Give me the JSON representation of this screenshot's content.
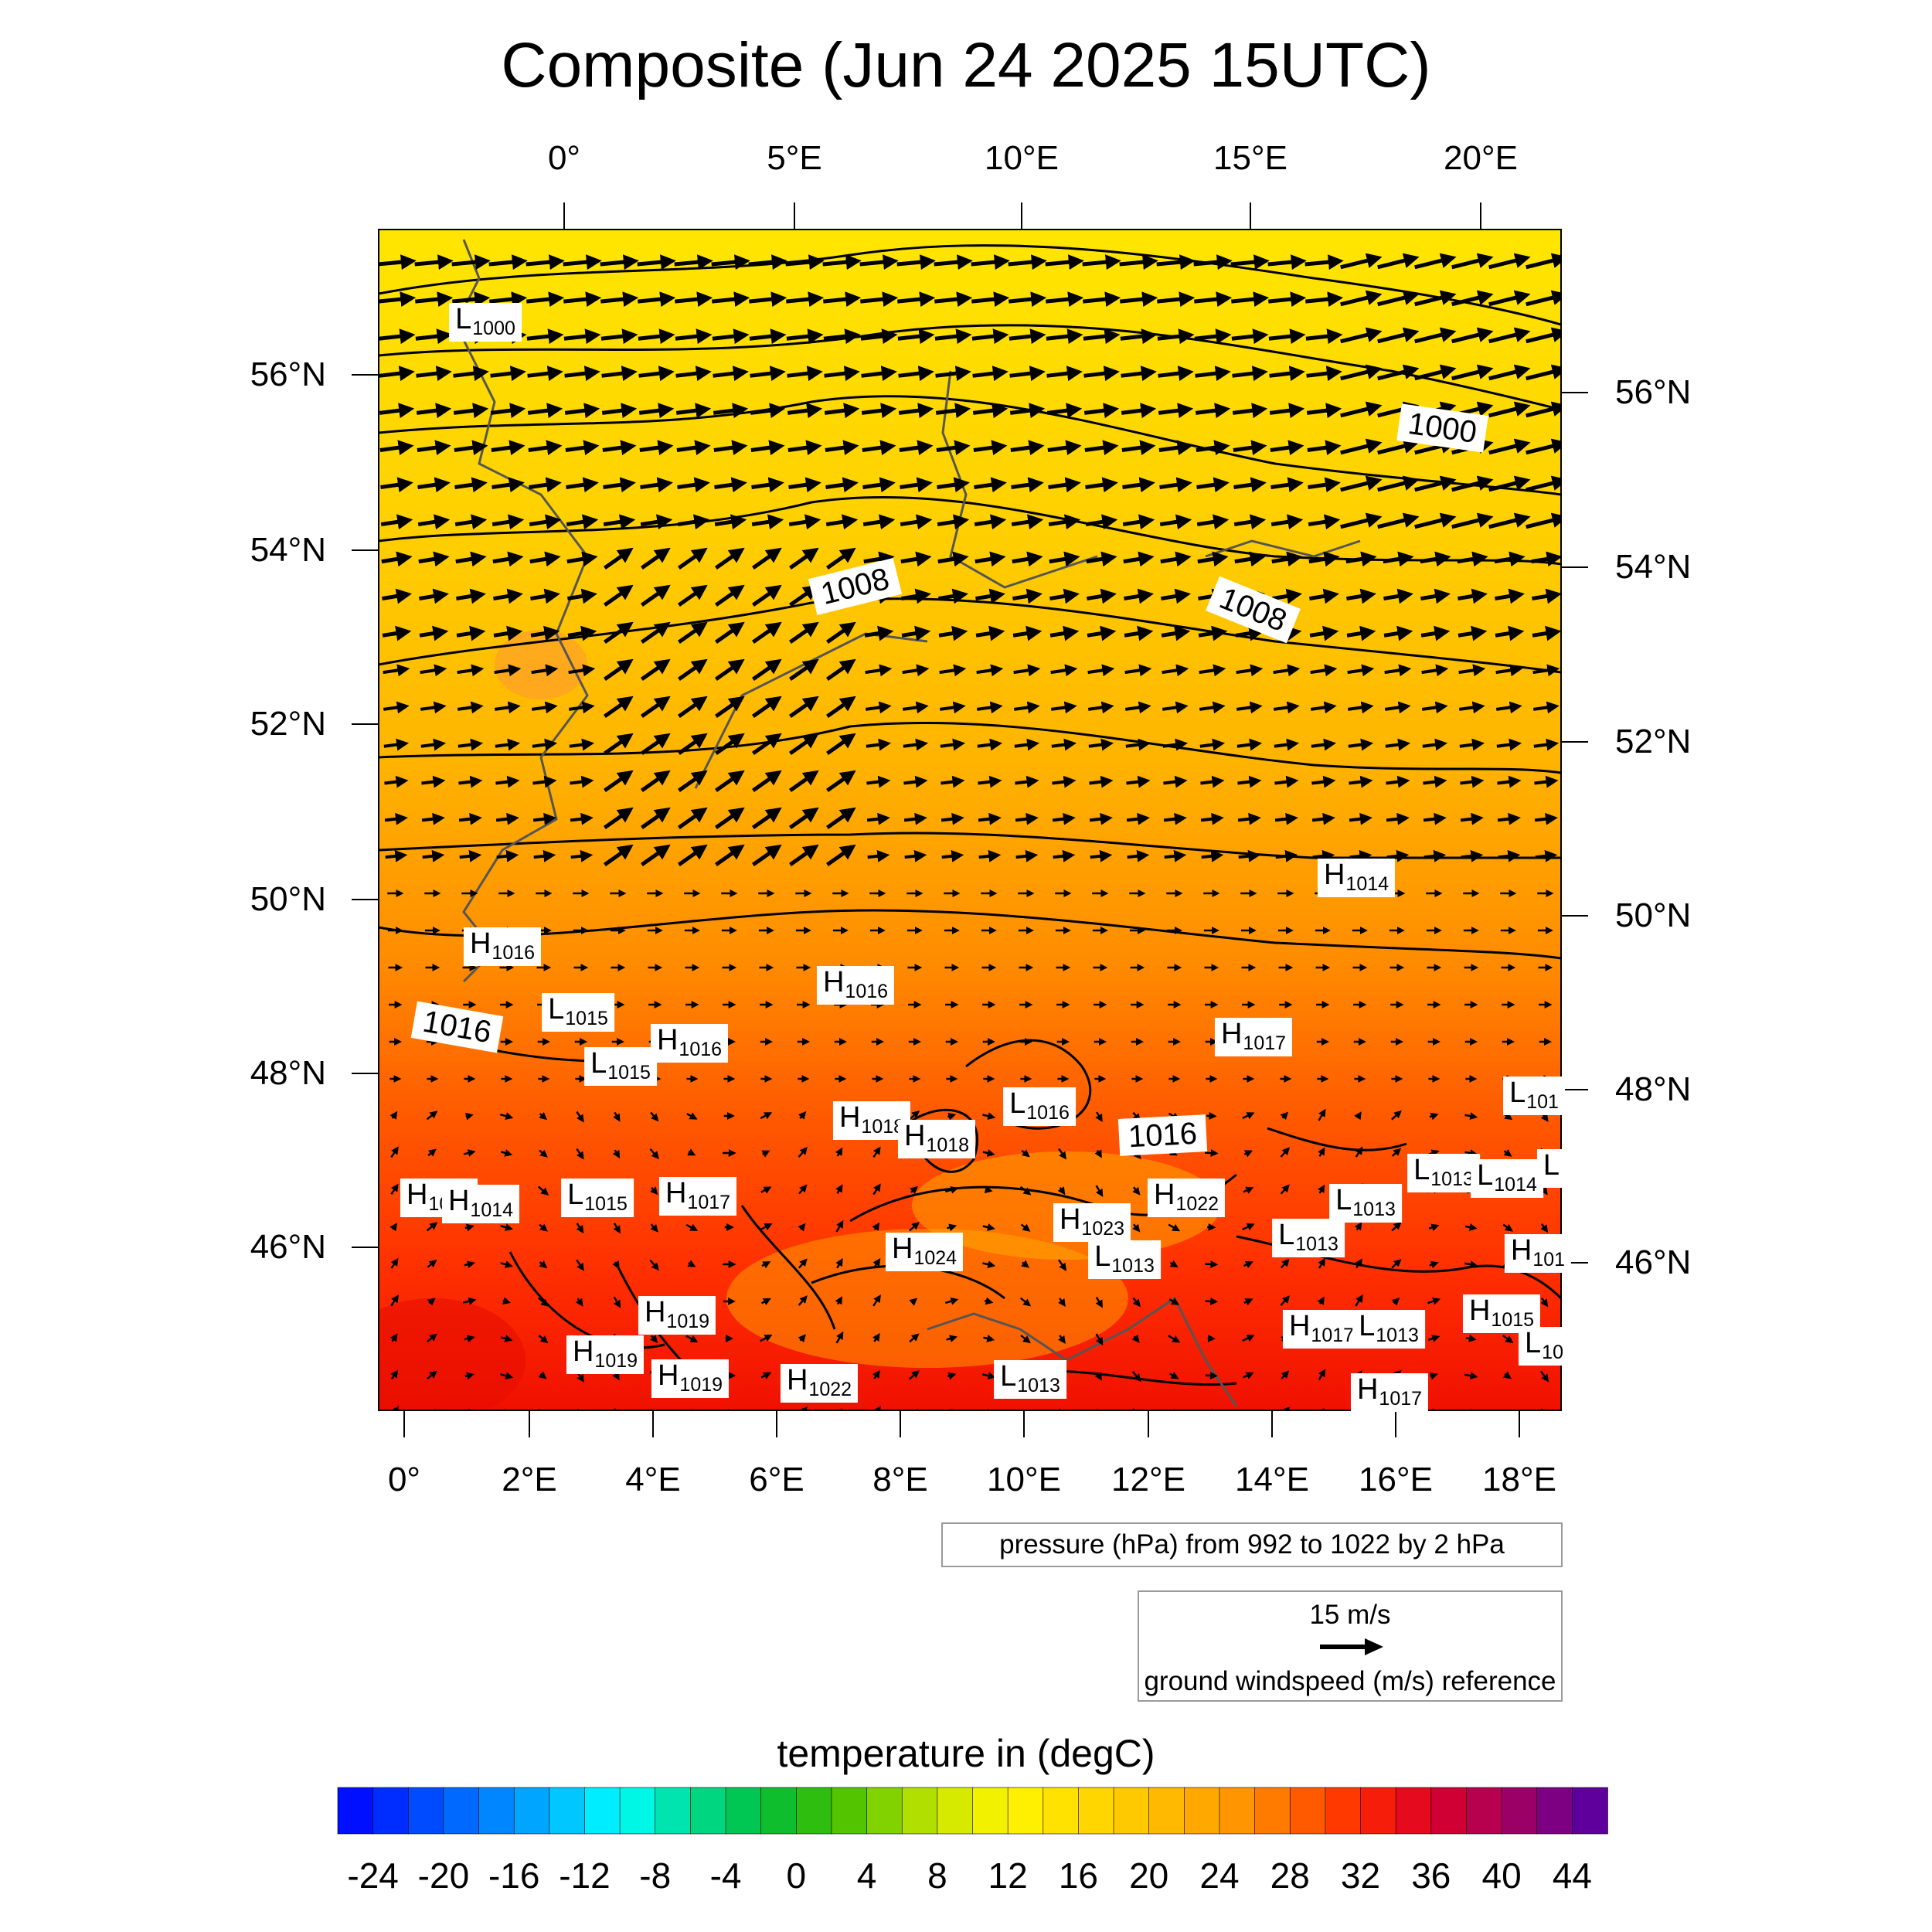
{
  "title": "Composite (Jun 24 2025 15UTC)",
  "map": {
    "top_lon_labels": [
      "0°",
      "5°E",
      "10°E",
      "15°E",
      "20°E"
    ],
    "bottom_lon_labels": [
      "0°",
      "2°E",
      "4°E",
      "6°E",
      "8°E",
      "10°E",
      "12°E",
      "14°E",
      "16°E",
      "18°E"
    ],
    "left_lat_labels": [
      "56°N",
      "54°N",
      "52°N",
      "50°N",
      "48°N",
      "46°N"
    ],
    "right_lat_labels": [
      "56°N",
      "54°N",
      "52°N",
      "50°N",
      "48°N",
      "46°N"
    ],
    "isobar_labels": [
      "1000",
      "1008",
      "1008",
      "1016",
      "1016"
    ],
    "pressure_centers": [
      {
        "type": "L",
        "value": "1000"
      },
      {
        "type": "H",
        "value": "1014"
      },
      {
        "type": "H",
        "value": "1016"
      },
      {
        "type": "H",
        "value": "1016"
      },
      {
        "type": "L",
        "value": "1015"
      },
      {
        "type": "H",
        "value": "1016"
      },
      {
        "type": "L",
        "value": "1015"
      },
      {
        "type": "H",
        "value": "1017"
      },
      {
        "type": "H",
        "value": "1018"
      },
      {
        "type": "H",
        "value": "1018"
      },
      {
        "type": "L",
        "value": "1016"
      },
      {
        "type": "L",
        "value": "101"
      },
      {
        "type": "H",
        "value": "1015"
      },
      {
        "type": "H",
        "value": "1014"
      },
      {
        "type": "L",
        "value": "1015"
      },
      {
        "type": "H",
        "value": "1017"
      },
      {
        "type": "H",
        "value": "1022"
      },
      {
        "type": "H",
        "value": "1023"
      },
      {
        "type": "L",
        "value": "1013"
      },
      {
        "type": "L",
        "value": "1013"
      },
      {
        "type": "L",
        "value": "1013"
      },
      {
        "type": "L",
        "value": "1013"
      },
      {
        "type": "L",
        "value": "1014"
      },
      {
        "type": "L",
        "value": ""
      },
      {
        "type": "H",
        "value": "1024"
      },
      {
        "type": "H",
        "value": "1019"
      },
      {
        "type": "H",
        "value": "1019"
      },
      {
        "type": "H",
        "value": "1019"
      },
      {
        "type": "H",
        "value": "1022"
      },
      {
        "type": "L",
        "value": "1013"
      },
      {
        "type": "H",
        "value": "1017"
      },
      {
        "type": "L",
        "value": "1013"
      },
      {
        "type": "H",
        "value": "1015"
      },
      {
        "type": "L",
        "value": "10"
      },
      {
        "type": "H",
        "value": "101"
      },
      {
        "type": "H",
        "value": "1017"
      }
    ]
  },
  "pressure_legend": "pressure (hPa) from 992 to 1022 by 2 hPa",
  "wind_legend": {
    "speed": "15 m/s",
    "caption": "ground windspeed (m/s) reference"
  },
  "colorbar": {
    "title": "temperature in (degC)",
    "ticks": [
      "-24",
      "-20",
      "-16",
      "-12",
      "-8",
      "-4",
      "0",
      "4",
      "8",
      "12",
      "16",
      "20",
      "24",
      "28",
      "32",
      "36",
      "40",
      "44"
    ],
    "min": -26,
    "max": 46,
    "step": 2,
    "colors": {
      "cold": "#0000ff",
      "cyan": "#00ffff",
      "green": "#00b000",
      "yellow": "#ffee00",
      "orange": "#ff8800",
      "red": "#ff1500",
      "purple": "#5a00a0"
    }
  }
}
